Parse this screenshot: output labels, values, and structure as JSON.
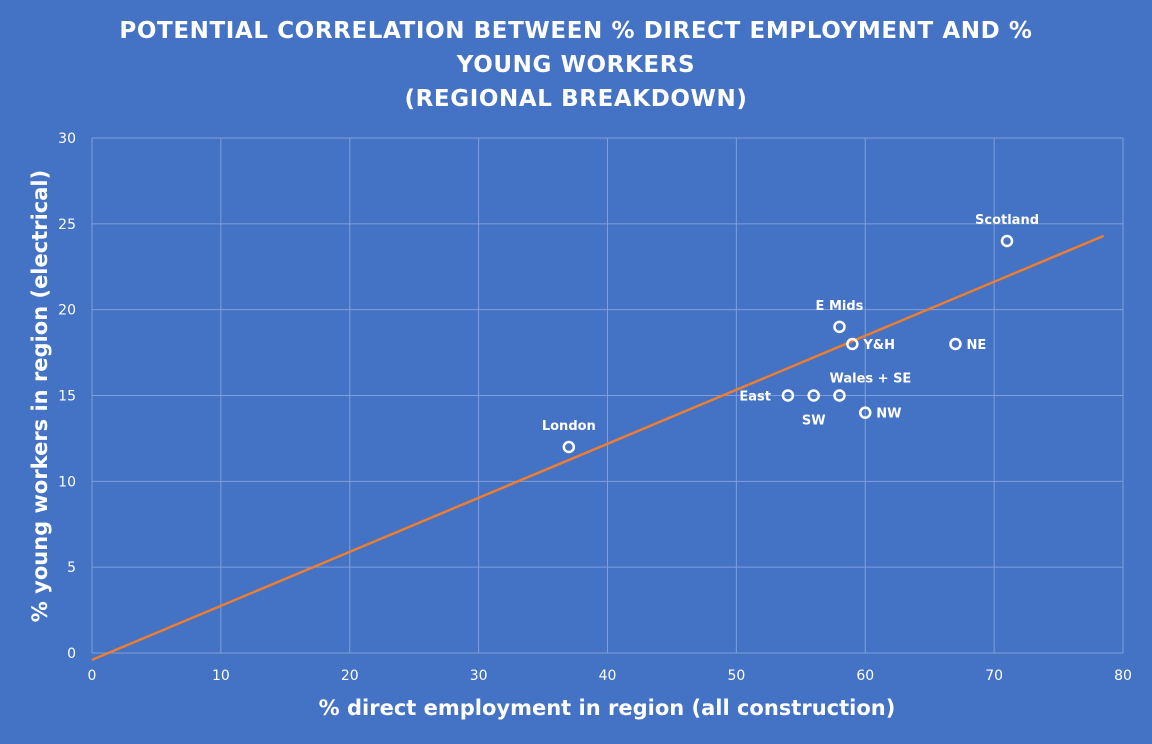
{
  "chart_data": {
    "type": "scatter",
    "title_lines": [
      "POTENTIAL CORRELATION BETWEEN % DIRECT EMPLOYMENT AND %",
      "YOUNG WORKERS",
      "(REGIONAL BREAKDOWN)"
    ],
    "xlabel": "% direct employment in region (all construction)",
    "ylabel": "% young workers in region (electrical)",
    "xlim": [
      0,
      80
    ],
    "ylim": [
      0,
      30
    ],
    "xticks": [
      "0",
      "10",
      "20",
      "30",
      "40",
      "50",
      "60",
      "70",
      "80"
    ],
    "yticks": [
      "0",
      "5",
      "10",
      "15",
      "20",
      "25",
      "30"
    ],
    "grid": true,
    "points": [
      {
        "label": "London",
        "x": 37,
        "y": 12,
        "label_pos": "above"
      },
      {
        "label": "East",
        "x": 54,
        "y": 15,
        "label_pos": "left"
      },
      {
        "label": "SW",
        "x": 56,
        "y": 15,
        "label_pos": "below"
      },
      {
        "label": "Wales + SE",
        "x": 58,
        "y": 15,
        "label_pos": "above-right"
      },
      {
        "label": "E Mids",
        "x": 58,
        "y": 19,
        "label_pos": "above"
      },
      {
        "label": "Y&H",
        "x": 59,
        "y": 18,
        "label_pos": "right"
      },
      {
        "label": "NW",
        "x": 60,
        "y": 14,
        "label_pos": "right"
      },
      {
        "label": "NE",
        "x": 67,
        "y": 18,
        "label_pos": "right"
      },
      {
        "label": "Scotland",
        "x": 71,
        "y": 24,
        "label_pos": "above"
      }
    ],
    "trendline": {
      "type": "linear",
      "x": [
        0,
        78.5
      ],
      "y": [
        -0.4,
        24.3
      ]
    },
    "colors": {
      "background": "#4472C4",
      "gridlines": "#7F9FD9",
      "trendline": "#ED7D31",
      "markers": "#FFFFFF",
      "text": "#FFFFFF"
    }
  }
}
